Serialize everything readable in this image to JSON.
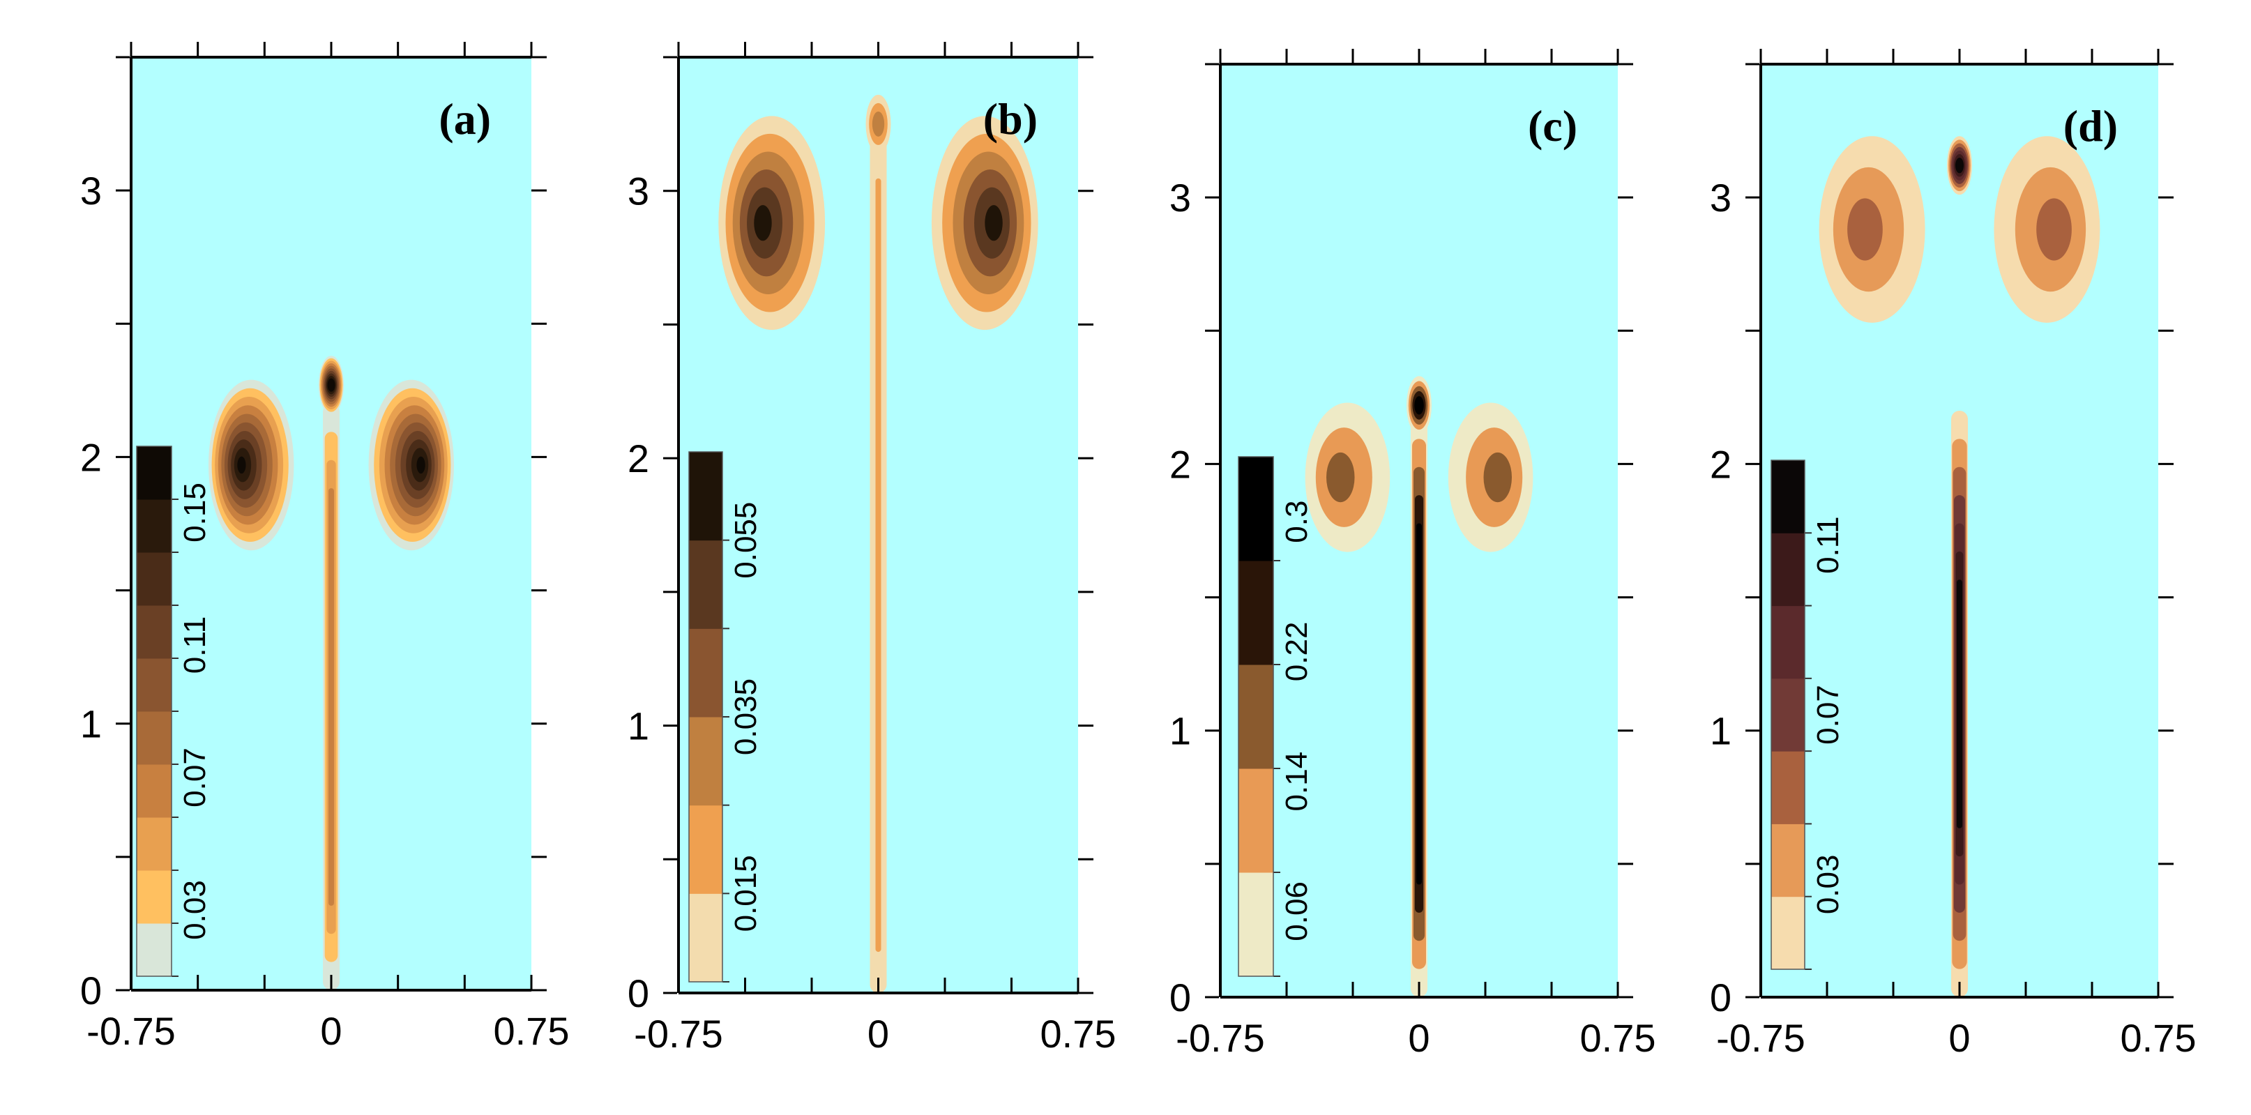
{
  "figure": {
    "description_free": true,
    "background_color": "#b3ffff",
    "axis_color": "#000000"
  },
  "chart_data": [
    {
      "type": "heatmap",
      "panel_label": "(a)",
      "x_ticks": [
        "-0.75",
        "0",
        "0.75"
      ],
      "y_ticks": [
        "0",
        "1",
        "2",
        "3"
      ],
      "xlim": [
        -0.75,
        0.75
      ],
      "ylim": [
        0,
        3.5
      ],
      "colorbar": {
        "levels": 10,
        "colors": [
          "#d9e6d9",
          "#ffc060",
          "#e8a050",
          "#c88040",
          "#a86a38",
          "#8a5530",
          "#6a4025",
          "#4a2c18",
          "#2a1a0c",
          "#0f0a05"
        ],
        "labels": [
          "0.03",
          "0.07",
          "0.11",
          "0.15"
        ]
      },
      "vortices": [
        {
          "x": -0.3,
          "y": 1.97,
          "peak_level": 9,
          "rx": 0.16,
          "ry": 0.32
        },
        {
          "x": 0.3,
          "y": 1.97,
          "peak_level": 9,
          "rx": 0.16,
          "ry": 0.32
        }
      ],
      "tip": {
        "x": 0,
        "y": 2.27,
        "peak_level": 9
      },
      "stem": {
        "from": 0.0,
        "to": 2.2,
        "peak_level": 3
      }
    },
    {
      "type": "heatmap",
      "panel_label": "(b)",
      "x_ticks": [
        "-0.75",
        "0",
        "0.75"
      ],
      "y_ticks": [
        "0",
        "1",
        "2",
        "3"
      ],
      "xlim": [
        -0.75,
        0.75
      ],
      "ylim": [
        0,
        3.5
      ],
      "colorbar": {
        "levels": 6,
        "colors": [
          "#f3dcae",
          "#efa050",
          "#c08040",
          "#8a5530",
          "#5a3820",
          "#1f1408"
        ],
        "labels": [
          "0.015",
          "0.035",
          "0.055"
        ]
      },
      "vortices": [
        {
          "x": -0.4,
          "y": 2.88,
          "peak_level": 5,
          "rx": 0.2,
          "ry": 0.4
        },
        {
          "x": 0.4,
          "y": 2.88,
          "peak_level": 5,
          "rx": 0.2,
          "ry": 0.4
        }
      ],
      "tip": {
        "x": 0,
        "y": 3.25,
        "peak_level": 2
      },
      "stem": {
        "from": 0.0,
        "to": 3.2,
        "peak_level": 1
      }
    },
    {
      "type": "heatmap",
      "panel_label": "(c)",
      "x_ticks": [
        "-0.75",
        "0",
        "0.75"
      ],
      "y_ticks": [
        "0",
        "1",
        "2",
        "3"
      ],
      "xlim": [
        -0.75,
        0.75
      ],
      "ylim": [
        0,
        3.5
      ],
      "colorbar": {
        "levels": 5,
        "colors": [
          "#eeeac6",
          "#e89a55",
          "#8a5a2e",
          "#2a1508",
          "#000000"
        ],
        "labels": [
          "0.06",
          "0.14",
          "0.22",
          "0.3"
        ]
      },
      "vortices": [
        {
          "x": -0.27,
          "y": 1.95,
          "peak_level": 2,
          "rx": 0.16,
          "ry": 0.28
        },
        {
          "x": 0.27,
          "y": 1.95,
          "peak_level": 2,
          "rx": 0.16,
          "ry": 0.28
        }
      ],
      "tip": {
        "x": 0,
        "y": 2.22,
        "peak_level": 4
      },
      "stem": {
        "from": 0.0,
        "to": 2.2,
        "peak_level": 4
      }
    },
    {
      "type": "heatmap",
      "panel_label": "(d)",
      "x_ticks": [
        "-0.75",
        "0",
        "0.75"
      ],
      "y_ticks": [
        "0",
        "1",
        "2",
        "3"
      ],
      "xlim": [
        -0.75,
        0.75
      ],
      "ylim": [
        0,
        3.5
      ],
      "colorbar": {
        "levels": 7,
        "colors": [
          "#f6dcae",
          "#e69a58",
          "#a9613e",
          "#713a36",
          "#5b2a2c",
          "#3c1a1a",
          "#0b0707"
        ],
        "labels": [
          "0.03",
          "0.07",
          "0.11"
        ]
      },
      "vortices": [
        {
          "x": -0.33,
          "y": 2.88,
          "peak_level": 2,
          "rx": 0.2,
          "ry": 0.35
        },
        {
          "x": 0.33,
          "y": 2.88,
          "peak_level": 2,
          "rx": 0.2,
          "ry": 0.35
        }
      ],
      "tip": {
        "x": 0,
        "y": 3.12,
        "peak_level": 6
      },
      "stem": {
        "from": 0.0,
        "to": 2.2,
        "peak_level": 6
      }
    }
  ]
}
